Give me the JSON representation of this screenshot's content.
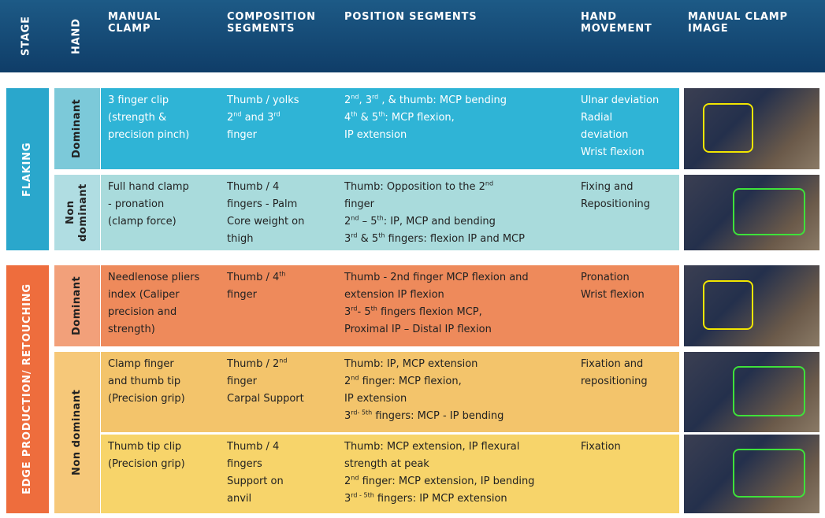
{
  "headers": [
    "STAGE",
    "HAND",
    "MANUAL CLAMP",
    "COMPOSITION SEGMENTS",
    "POSITION SEGMENTS",
    "HAND MOVEMENT",
    "MANUAL CLAMP IMAGE"
  ],
  "sections": [
    {
      "stage": "FLAKING",
      "hands": [
        {
          "hand": "Dominant",
          "rows": [
            {
              "clamp": [
                "3 finger clip",
                "(strength &",
                "precision pinch)"
              ],
              "composition": [
                "Thumb / yolks",
                [
                  "2",
                  {
                    "sup": "nd"
                  },
                  " and 3",
                  {
                    "sup": "rd"
                  }
                ],
                "finger"
              ],
              "position": [
                [
                  "2",
                  {
                    "sup": "nd"
                  },
                  ", 3",
                  {
                    "sup": "rd"
                  },
                  " , & thumb: MCP bending"
                ],
                [
                  "4",
                  {
                    "sup": "th"
                  },
                  " & 5",
                  {
                    "sup": "th"
                  },
                  ": MCP flexion,"
                ],
                "IP extension"
              ],
              "movement": [
                "Ulnar deviation",
                "Radial",
                "deviation",
                "Wrist flexion"
              ]
            }
          ]
        },
        {
          "hand": "Non dominant",
          "rows": [
            {
              "clamp": [
                "Full hand clamp",
                "- pronation",
                "(clamp force)"
              ],
              "composition": [
                "Thumb / 4",
                "fingers - Palm",
                "Core weight on",
                "thigh"
              ],
              "position": [
                [
                  "Thumb: Opposition to the 2",
                  {
                    "sup": "nd"
                  }
                ],
                "finger",
                [
                  "2",
                  {
                    "sup": "nd"
                  },
                  " – 5",
                  {
                    "sup": "th"
                  },
                  ": IP, MCP and bending"
                ],
                [
                  "3",
                  {
                    "sup": "rd"
                  },
                  " & 5",
                  {
                    "sup": "th"
                  },
                  " fingers: flexion IP and MCP"
                ]
              ],
              "movement": [
                "Fixing and",
                "Repositioning"
              ]
            }
          ]
        }
      ]
    },
    {
      "stage": "EDGE PRODUCTION/ RETOUCHING",
      "hands": [
        {
          "hand": "Dominant",
          "rows": [
            {
              "clamp": [
                "Needlenose pliers",
                "index (Caliper",
                "precision and",
                "strength)"
              ],
              "composition": [
                [
                  "Thumb / 4",
                  {
                    "sup": "th"
                  }
                ],
                "finger"
              ],
              "position": [
                "Thumb - 2nd finger MCP flexion and",
                "extension IP flexion",
                [
                  "3",
                  {
                    "sup": "rd"
                  },
                  "- 5",
                  {
                    "sup": "th"
                  },
                  " fingers flexion MCP,"
                ],
                "Proximal IP – Distal IP flexion"
              ],
              "movement": [
                "Pronation",
                "Wrist flexion"
              ]
            }
          ]
        },
        {
          "hand": "Non dominant",
          "rows": [
            {
              "clamp": [
                "Clamp finger",
                "and thumb tip",
                "(Precision grip)"
              ],
              "composition": [
                [
                  "Thumb / 2",
                  {
                    "sup": "nd"
                  }
                ],
                "finger",
                "Carpal Support"
              ],
              "position": [
                "Thumb: IP, MCP extension",
                [
                  "2",
                  {
                    "sup": "nd"
                  },
                  " finger: MCP flexion,"
                ],
                "IP extension",
                [
                  "3",
                  {
                    "sup": "rd- 5th"
                  },
                  " fingers: MCP - IP bending"
                ]
              ],
              "movement": [
                "Fixation and",
                "repositioning"
              ]
            },
            {
              "clamp": [
                "Thumb tip clip",
                "(Precision grip)"
              ],
              "composition": [
                "Thumb / 4",
                "fingers",
                "Support on",
                "anvil"
              ],
              "position": [
                "Thumb: MCP extension, IP flexural",
                "strength at peak",
                [
                  "2",
                  {
                    "sup": "nd"
                  },
                  " finger: MCP extension, IP bending"
                ],
                [
                  "3",
                  {
                    "sup": "rd - 5th"
                  },
                  " fingers: IP MCP extension"
                ]
              ],
              "movement": [
                "Fixation"
              ]
            }
          ]
        }
      ]
    }
  ]
}
